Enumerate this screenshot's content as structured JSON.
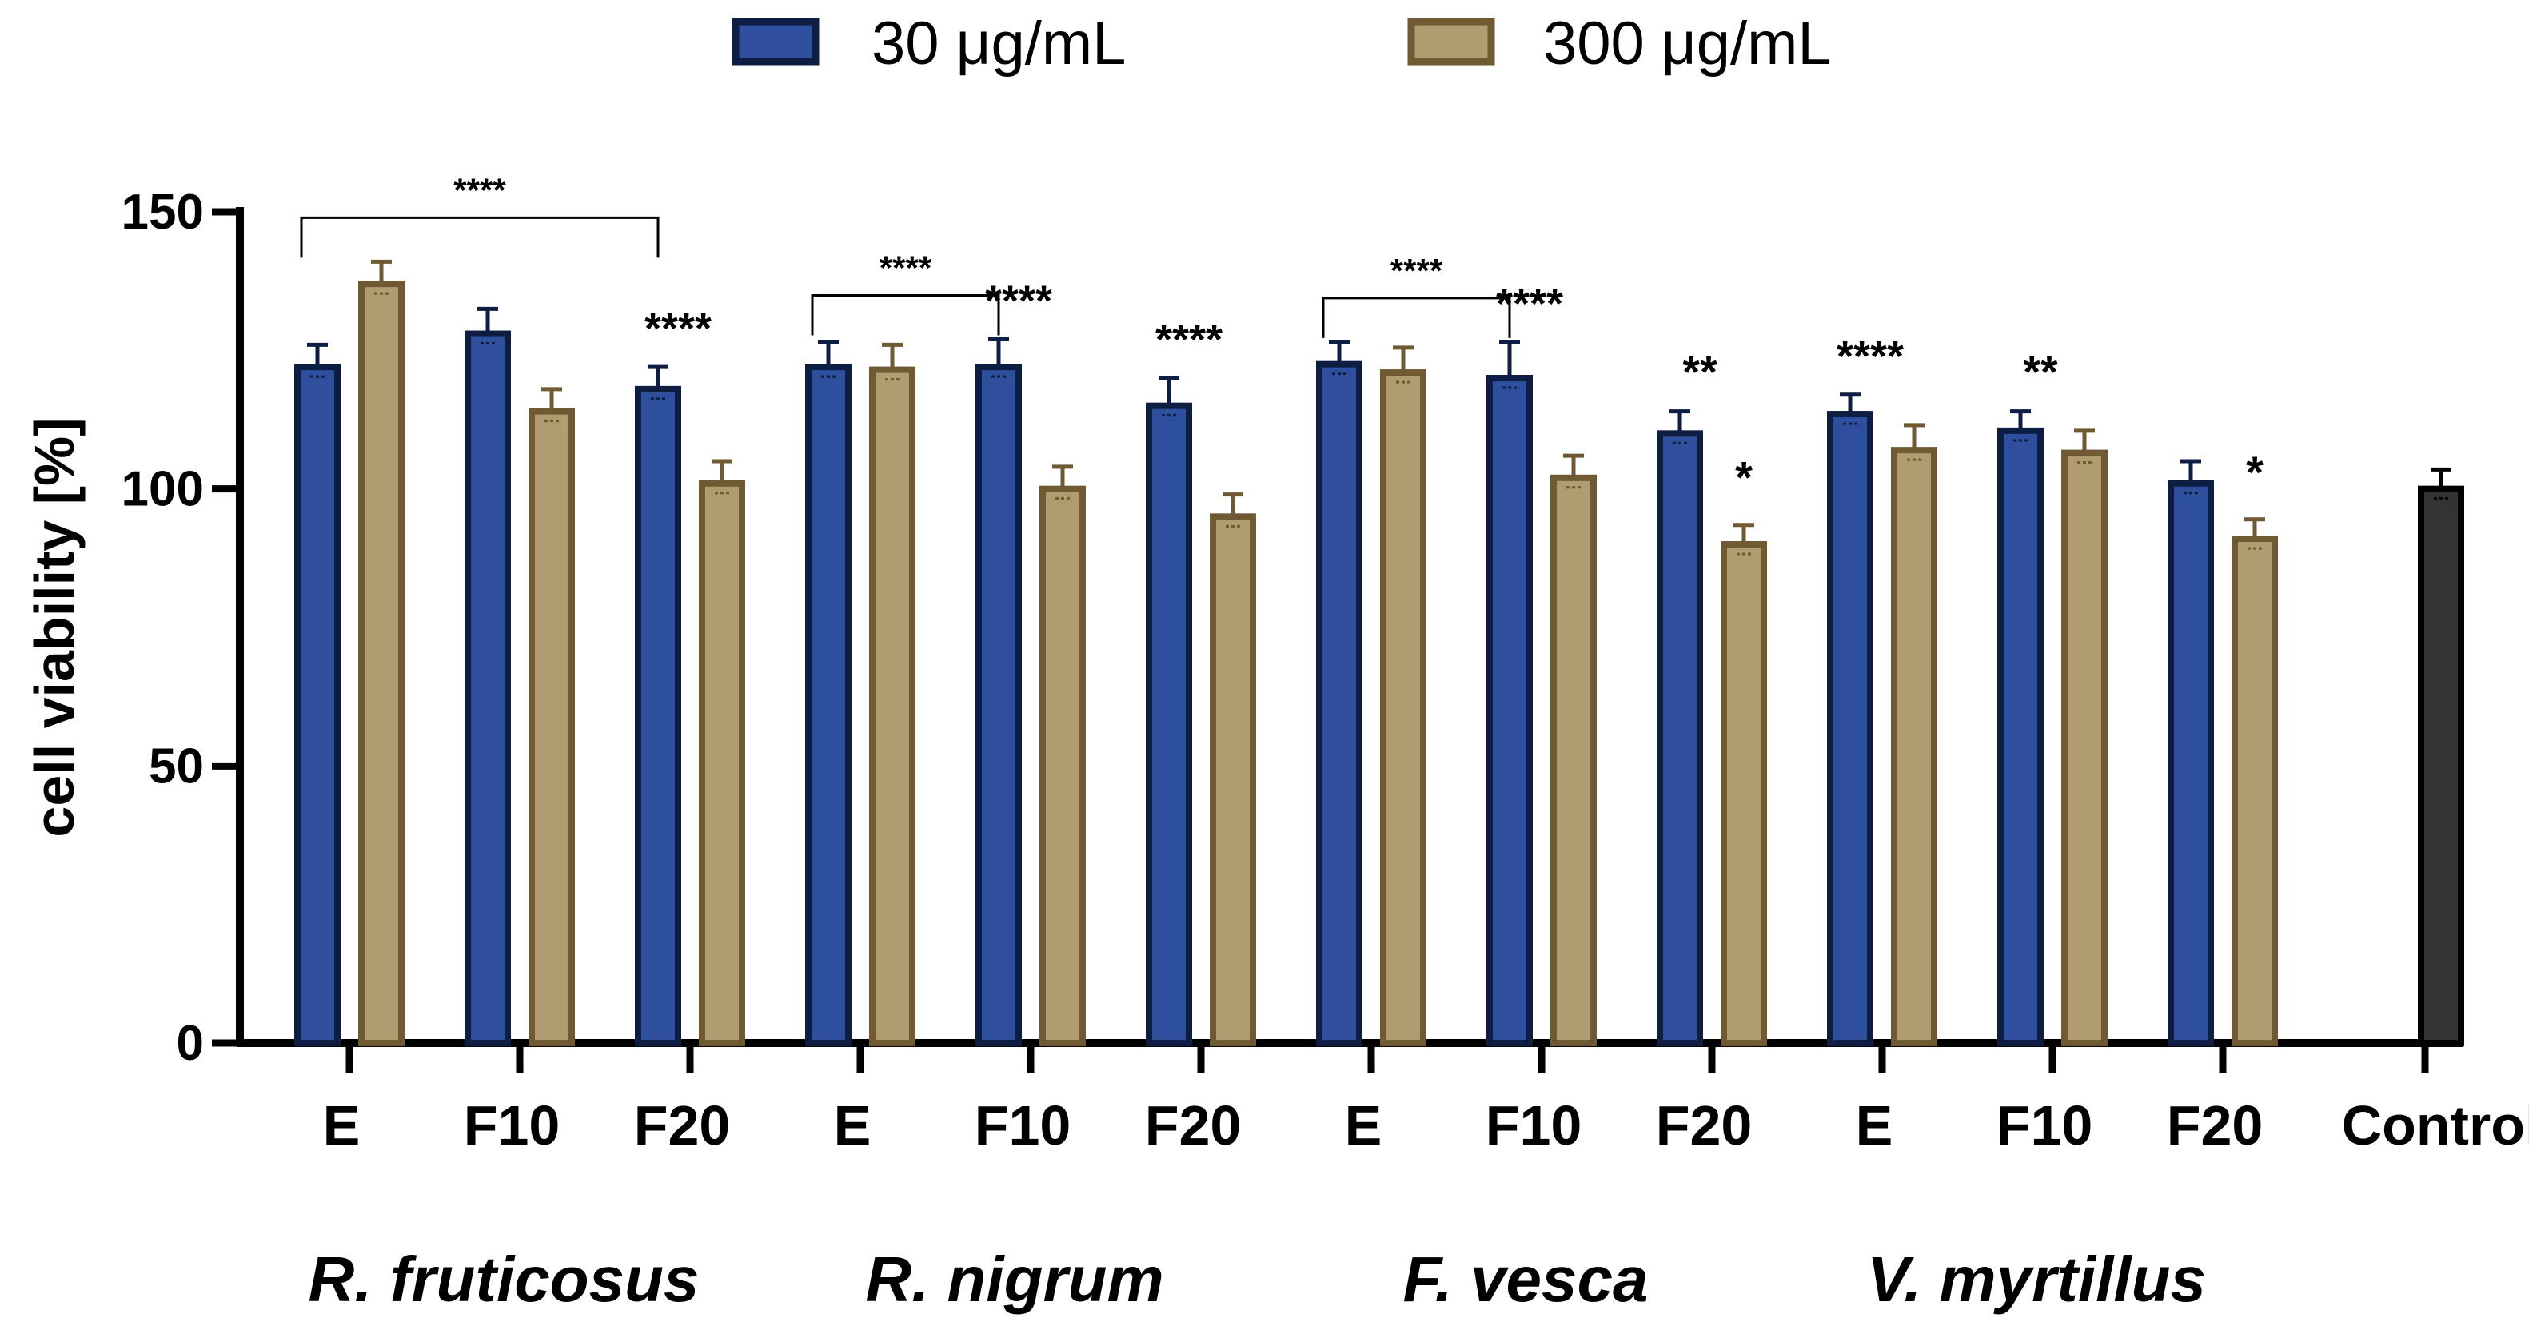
{
  "chart_data": {
    "type": "bar",
    "ylabel": "cell viability [%]",
    "ylim": [
      0,
      150
    ],
    "yticks": [
      "0",
      "50",
      "100",
      "150"
    ],
    "legend": [
      {
        "label": "30 μg/mL",
        "fill": "#2e4f9e",
        "edge": "#0d1e42"
      },
      {
        "label": "300 μg/mL",
        "fill": "#b19b70",
        "edge": "#6f5a34"
      }
    ],
    "control_color": {
      "fill": "#333333",
      "edge": "#000000"
    },
    "groups": [
      {
        "name": "R. fruticosus",
        "categories": [
          {
            "label": "E",
            "v30": 122,
            "e30": 4,
            "v300": 137,
            "e300": 4,
            "sig30": "",
            "sig300": ""
          },
          {
            "label": "F10",
            "v30": 128,
            "e30": 4.5,
            "v300": 114,
            "e300": 4,
            "sig30": "",
            "sig300": ""
          },
          {
            "label": "F20",
            "v30": 118,
            "e30": 4,
            "v300": 101,
            "e300": 4,
            "sig30": "****",
            "sig300": ""
          }
        ]
      },
      {
        "name": "R. nigrum",
        "categories": [
          {
            "label": "E",
            "v30": 122,
            "e30": 4.5,
            "v300": 121.5,
            "e300": 4.5,
            "sig30": "",
            "sig300": ""
          },
          {
            "label": "F10",
            "v30": 122,
            "e30": 5,
            "v300": 100,
            "e300": 4,
            "sig30": "****",
            "sig300": ""
          },
          {
            "label": "F20",
            "v30": 115,
            "e30": 5,
            "v300": 95,
            "e300": 4,
            "sig30": "****",
            "sig300": ""
          }
        ]
      },
      {
        "name": "F. vesca",
        "categories": [
          {
            "label": "E",
            "v30": 122.5,
            "e30": 4,
            "v300": 121,
            "e300": 4.5,
            "sig30": "",
            "sig300": ""
          },
          {
            "label": "F10",
            "v30": 120,
            "e30": 6.5,
            "v300": 102,
            "e300": 4,
            "sig30": "****",
            "sig300": ""
          },
          {
            "label": "F20",
            "v30": 110,
            "e30": 4,
            "v300": 90,
            "e300": 3.5,
            "sig30": "**",
            "sig300": "*"
          }
        ]
      },
      {
        "name": "V. myrtillus",
        "categories": [
          {
            "label": "E",
            "v30": 113.5,
            "e30": 3.5,
            "v300": 107,
            "e300": 4.5,
            "sig30": "****",
            "sig300": ""
          },
          {
            "label": "F10",
            "v30": 110.5,
            "e30": 3.5,
            "v300": 106.5,
            "e300": 4,
            "sig30": "**",
            "sig300": ""
          },
          {
            "label": "F20",
            "v30": 101,
            "e30": 4,
            "v300": 91,
            "e300": 3.5,
            "sig30": "",
            "sig300": "*"
          }
        ]
      }
    ],
    "control": {
      "label": "Control",
      "value": 100,
      "err": 3.5
    },
    "brackets": [
      {
        "group": 0,
        "from": 0,
        "to": 2,
        "label": "****"
      },
      {
        "group": 1,
        "from": 0,
        "to": 1,
        "label": "****"
      },
      {
        "group": 2,
        "from": 0,
        "to": 1,
        "label": "****"
      }
    ]
  }
}
